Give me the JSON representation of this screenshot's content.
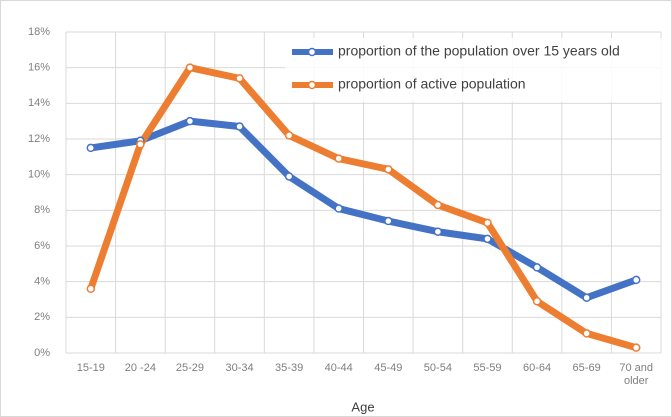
{
  "chart_data": {
    "type": "line",
    "x_label": "Age",
    "categories": [
      "15-19",
      "20 -24",
      "25-29",
      "30-34",
      "35-39",
      "40-44",
      "45-49",
      "50-54",
      "55-59",
      "60-64",
      "65-69",
      "70 and older"
    ],
    "series": [
      {
        "name": "proportion of the population over 15 years old",
        "color": "#4472c4",
        "values": [
          11.5,
          11.9,
          13.0,
          12.7,
          9.9,
          8.1,
          7.4,
          6.8,
          6.4,
          4.8,
          3.1,
          4.1
        ]
      },
      {
        "name": "proportion of active population",
        "color": "#ed7d31",
        "values": [
          3.6,
          11.7,
          16.0,
          15.4,
          12.2,
          10.9,
          10.3,
          8.3,
          7.3,
          2.9,
          1.1,
          0.3
        ]
      }
    ],
    "ylim": [
      0,
      18
    ],
    "yticks": [
      {
        "value": 0,
        "label": "0%"
      },
      {
        "value": 2,
        "label": "2%"
      },
      {
        "value": 4,
        "label": "4%"
      },
      {
        "value": 6,
        "label": "6%"
      },
      {
        "value": 8,
        "label": "8%"
      },
      {
        "value": 10,
        "label": "10%"
      },
      {
        "value": 12,
        "label": "12%"
      },
      {
        "value": 14,
        "label": "14%"
      },
      {
        "value": 16,
        "label": "16%"
      },
      {
        "value": 18,
        "label": "18%"
      }
    ],
    "grid": true
  }
}
